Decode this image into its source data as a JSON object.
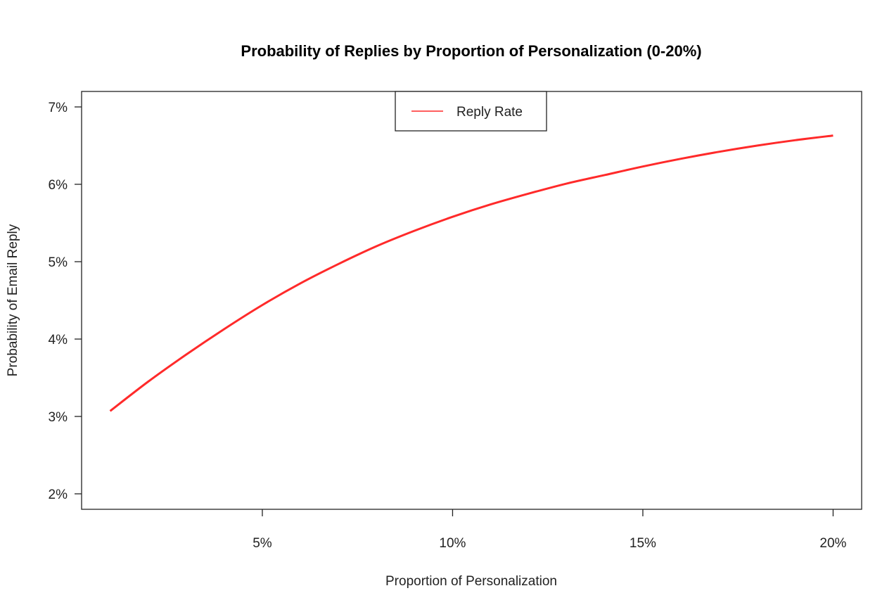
{
  "chart_data": {
    "type": "line",
    "title": "Probability of Replies by Proportion of Personalization (0-20%)",
    "xlabel": "Proportion of Personalization",
    "ylabel": "Probability of Email Reply",
    "xlim": [
      0.25,
      20.75
    ],
    "ylim": [
      1.8,
      7.2
    ],
    "x_ticks": [
      5,
      10,
      15,
      20
    ],
    "x_tick_labels": [
      "5%",
      "10%",
      "15%",
      "20%"
    ],
    "y_ticks": [
      2,
      3,
      4,
      5,
      6,
      7
    ],
    "y_tick_labels": [
      "2%",
      "3%",
      "4%",
      "5%",
      "6%",
      "7%"
    ],
    "grid": false,
    "legend": {
      "position": "top-center",
      "entries": [
        "Reply Rate"
      ]
    },
    "series": [
      {
        "name": "Reply Rate",
        "color": "#ff2a2a",
        "x": [
          1,
          2,
          3,
          4,
          5,
          6,
          7,
          8,
          9,
          10,
          11,
          12,
          13,
          14,
          15,
          16,
          17,
          18,
          19,
          20
        ],
        "y": [
          3.07,
          3.45,
          3.8,
          4.13,
          4.44,
          4.72,
          4.97,
          5.2,
          5.4,
          5.58,
          5.74,
          5.88,
          6.01,
          6.12,
          6.23,
          6.33,
          6.42,
          6.5,
          6.57,
          6.63
        ]
      }
    ]
  }
}
